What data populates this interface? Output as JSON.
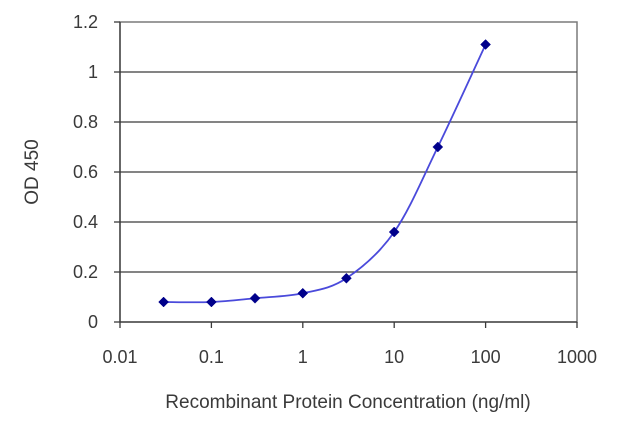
{
  "chart_data": {
    "type": "scatter",
    "xlabel": "Recombinant Protein Concentration (ng/ml)",
    "ylabel": "OD 450",
    "xscale": "log",
    "xlim": [
      0.01,
      1000
    ],
    "ylim": [
      0,
      1.2
    ],
    "x_ticks": [
      {
        "value": 0.01,
        "label": "0.01"
      },
      {
        "value": 0.1,
        "label": "0.1"
      },
      {
        "value": 1,
        "label": "1"
      },
      {
        "value": 10,
        "label": "10"
      },
      {
        "value": 100,
        "label": "100"
      },
      {
        "value": 1000,
        "label": "1000"
      }
    ],
    "y_ticks": [
      {
        "value": 0,
        "label": "0"
      },
      {
        "value": 0.2,
        "label": "0.2"
      },
      {
        "value": 0.4,
        "label": "0.4"
      },
      {
        "value": 0.6,
        "label": "0.6"
      },
      {
        "value": 0.8,
        "label": "0.8"
      },
      {
        "value": 1.0,
        "label": "1"
      },
      {
        "value": 1.2,
        "label": "1.2"
      }
    ],
    "grid": "horizontal",
    "legend": "none",
    "series": [
      {
        "color": "#00008b",
        "line_color": "#4a4adb",
        "marker": "diamond",
        "smooth_line": true,
        "points": [
          {
            "x": 0.03,
            "y": 0.08
          },
          {
            "x": 0.1,
            "y": 0.08
          },
          {
            "x": 0.3,
            "y": 0.095
          },
          {
            "x": 1,
            "y": 0.115
          },
          {
            "x": 3,
            "y": 0.175
          },
          {
            "x": 10,
            "y": 0.36
          },
          {
            "x": 30,
            "y": 0.7
          },
          {
            "x": 100,
            "y": 1.11
          }
        ]
      }
    ]
  }
}
